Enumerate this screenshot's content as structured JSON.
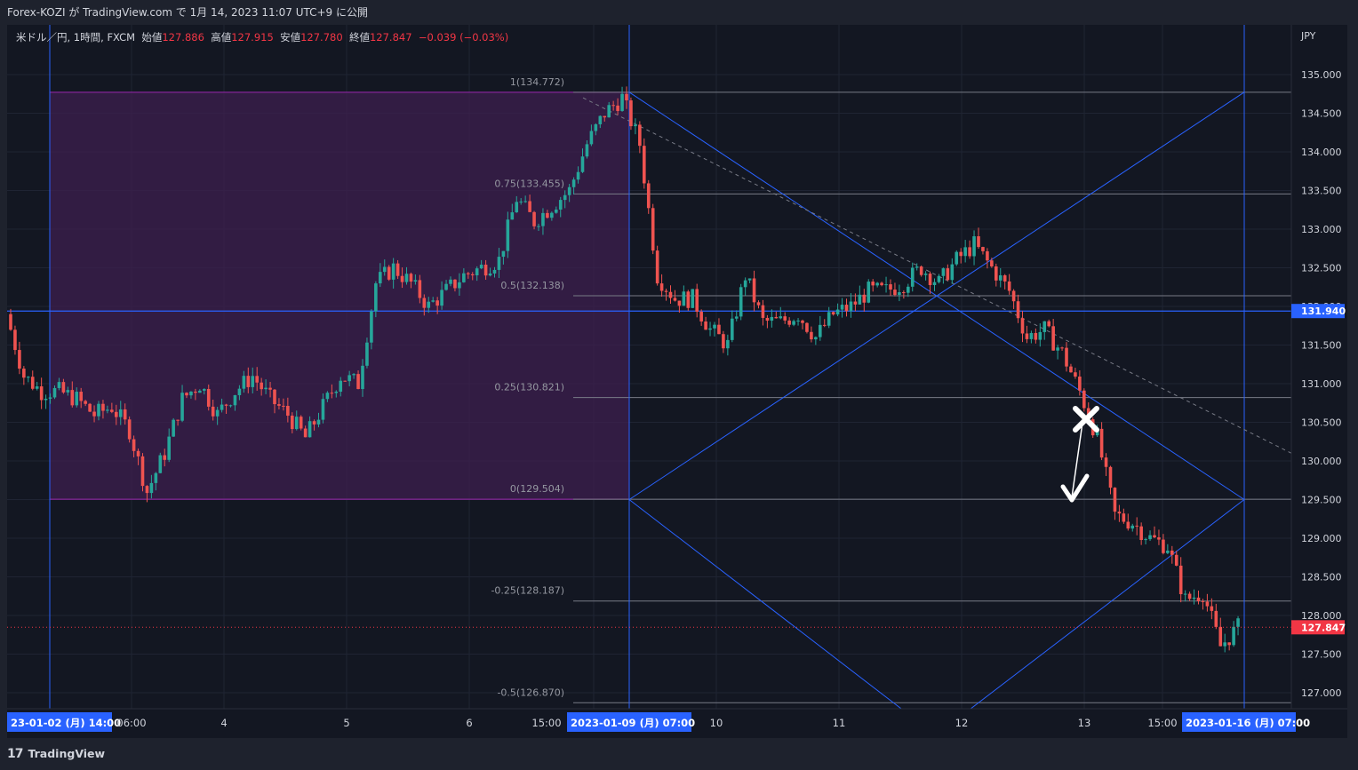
{
  "header": {
    "publish_text": "Forex-KOZI が TradingView.com で 1月 14, 2023 11:07 UTC+9 に公開"
  },
  "legend": {
    "symbol": "米ドル／円, 1時間, FXCM",
    "open_label": "始値",
    "open_value": "127.886",
    "high_label": "高値",
    "high_value": "127.915",
    "low_label": "安値",
    "low_value": "127.780",
    "close_label": "終値",
    "close_value": "127.847",
    "change": "−0.039 (−0.03%)"
  },
  "price_axis": {
    "currency": "JPY",
    "ticks": [
      "135.000",
      "134.500",
      "134.000",
      "133.500",
      "133.000",
      "132.500",
      "132.000",
      "131.500",
      "131.000",
      "130.500",
      "130.000",
      "129.500",
      "129.000",
      "128.500",
      "128.000",
      "127.500",
      "127.000"
    ],
    "ticks_num": [
      135.0,
      134.5,
      134.0,
      133.5,
      133.0,
      132.5,
      132.0,
      131.5,
      131.0,
      130.5,
      130.0,
      129.5,
      129.0,
      128.5,
      128.0,
      127.5,
      127.0
    ],
    "horizontal_line_label": "131.940",
    "horizontal_line_value": 131.94,
    "current_price_label": "127.847",
    "current_price_value": 127.847
  },
  "time_axis": {
    "labels": [
      "23-01-02 (月)   14:00",
      "06:00",
      "4",
      "5",
      "6",
      "15:00",
      "2023-01-09 (月)   07:00",
      "10",
      "11",
      "12",
      "13",
      "15:00",
      "2023-01-16 (月)   07:00"
    ],
    "highlighted": [
      0,
      6,
      12
    ]
  },
  "fibonacci": {
    "levels": [
      {
        "label": "1(134.772)",
        "price": 134.772
      },
      {
        "label": "0.75(133.455)",
        "price": 133.455
      },
      {
        "label": "0.5(132.138)",
        "price": 132.138
      },
      {
        "label": "0.25(130.821)",
        "price": 130.821
      },
      {
        "label": "0(129.504)",
        "price": 129.504
      },
      {
        "label": "-0.25(128.187)",
        "price": 128.187
      },
      {
        "label": "-0.5(126.870)",
        "price": 126.87
      }
    ]
  },
  "chart_data": {
    "type": "candlestick",
    "symbol": "USDJPY",
    "timeframe": "1h",
    "ylim": [
      126.6,
      135.6
    ],
    "series": [
      {
        "name": "米ドル／円",
        "approx_close_path": [
          131.9,
          131.1,
          130.9,
          130.9,
          130.8,
          130.6,
          130.7,
          130.4,
          129.6,
          130.1,
          130.8,
          131.0,
          130.6,
          130.9,
          131.1,
          130.8,
          130.6,
          130.3,
          130.7,
          131.1,
          131.0,
          132.3,
          132.5,
          132.3,
          132.0,
          132.2,
          132.4,
          132.5,
          132.6,
          133.4,
          133.1,
          133.3,
          133.5,
          134.1,
          134.5,
          134.7,
          134.1,
          132.4,
          132.1,
          132.1,
          131.7,
          131.5,
          132.4,
          131.8,
          131.8,
          131.9,
          131.6,
          131.9,
          132.0,
          132.2,
          132.2,
          132.3,
          132.5,
          132.3,
          132.6,
          132.8,
          132.5,
          132.2,
          131.6,
          131.7,
          131.4,
          130.9,
          130.3,
          129.3,
          129.2,
          129.0,
          128.9,
          128.2,
          128.3,
          127.6,
          127.847
        ]
      }
    ]
  },
  "footer": {
    "brand": "TradingView"
  },
  "colors": {
    "background": "#131722",
    "up": "#26a69a",
    "down": "#ef5350",
    "range_fill": "#3d1f4f",
    "range_border": "#9c27b0",
    "blue_line": "#2962ff",
    "fib_line": "#787b86",
    "current_price": "#f23645"
  }
}
